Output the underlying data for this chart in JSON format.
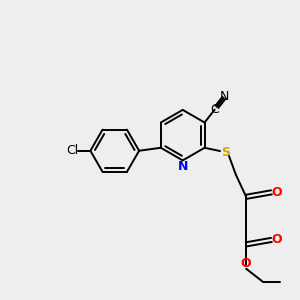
{
  "background_color": "#eeeeee",
  "bond_color": "#000000",
  "N_color": "#0000ff",
  "S_color": "#ccaa00",
  "O_color": "#ff0000",
  "Cl_color": "#000000",
  "figsize": [
    3.0,
    3.0
  ],
  "dpi": 100,
  "xlim": [
    0,
    10
  ],
  "ylim": [
    0,
    10
  ]
}
